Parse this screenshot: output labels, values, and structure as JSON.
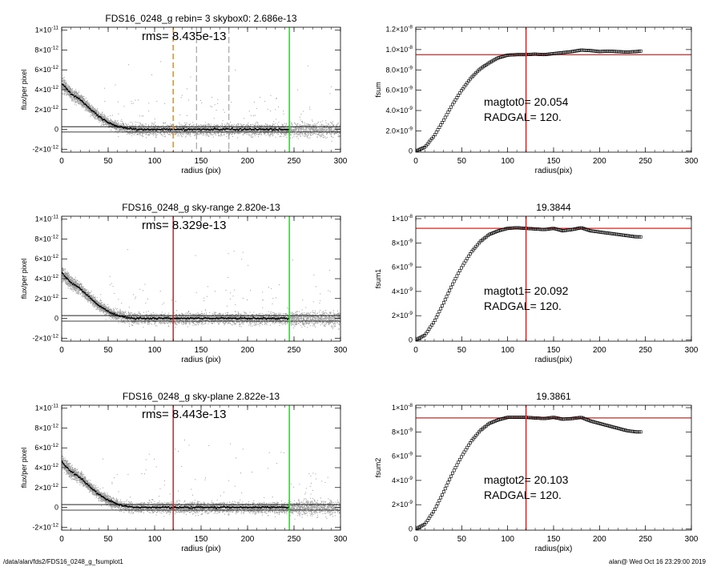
{
  "footer": {
    "left": "/data/alan/fds2/FDS16_0248_g_fsumplot1",
    "right": "alan@  Wed Oct 16 23:29:00 2019"
  },
  "colors": {
    "points": "#9a9a9a",
    "profile": "#000000",
    "green": "#22dd22",
    "red": "#dd2222",
    "orange": "#ee8822",
    "dash": "#777777"
  },
  "chart_data": [
    {
      "type": "scatter",
      "title": "FDS16_0248_g rebin= 3    skybox0:  2.686e-13",
      "annotation": "rms= 8.435e-13",
      "xlabel": "radius (pix)",
      "ylabel": "flux/per pixel",
      "xlim": [
        0,
        300
      ],
      "ylim": [
        -2.3e-12,
        1.03e-11
      ],
      "xticks": [
        0,
        50,
        100,
        150,
        200,
        250,
        300
      ],
      "yticks": [
        {
          "v": -2e-12,
          "m": "-2×10",
          "e": "-12"
        },
        {
          "v": 0,
          "m": "0",
          "e": ""
        },
        {
          "v": 2e-12,
          "m": "2×10",
          "e": "-12"
        },
        {
          "v": 4e-12,
          "m": "4×10",
          "e": "-12"
        },
        {
          "v": 6e-12,
          "m": "6×10",
          "e": "-12"
        },
        {
          "v": 8e-12,
          "m": "8×10",
          "e": "-12"
        },
        {
          "v": 1e-11,
          "m": "1×10",
          "e": "-11"
        }
      ],
      "hlines": [
        2.7e-13,
        -2.7e-13
      ],
      "vlines": [
        {
          "x": 245,
          "color": "green",
          "style": "solid"
        },
        {
          "x": 120,
          "color": "orange",
          "style": "dashed"
        },
        {
          "x": 145,
          "color": "dash",
          "style": "dashed"
        },
        {
          "x": 180,
          "color": "dash",
          "style": "dashed"
        }
      ],
      "profile": {
        "x": [
          0,
          10,
          20,
          30,
          40,
          50,
          60,
          70,
          80,
          100,
          150,
          200,
          245
        ],
        "y": [
          4.6e-12,
          3.6e-12,
          3e-12,
          2.1e-12,
          1.3e-12,
          7e-13,
          3e-13,
          1e-13,
          0,
          0,
          0,
          0,
          0
        ]
      },
      "pixel_scatter": {
        "x_range": [
          0,
          300
        ],
        "core_x": [
          0,
          60
        ],
        "noise_sigma": 4.3e-13,
        "outlier_ymax": 7e-12
      }
    },
    {
      "type": "line",
      "title": "",
      "annotations": [
        "magtot0=  20.054",
        "RADGAL=    120."
      ],
      "xlabel": "radius(pix)",
      "ylabel": "fsum",
      "xlim": [
        0,
        300
      ],
      "ylim": [
        -1e-10,
        1.22e-08
      ],
      "xticks": [
        0,
        50,
        100,
        150,
        200,
        250,
        300
      ],
      "yticks": [
        {
          "v": 0,
          "m": "0",
          "e": ""
        },
        {
          "v": 2e-09,
          "m": "2.0×10",
          "e": "-9"
        },
        {
          "v": 4e-09,
          "m": "4.0×10",
          "e": "-9"
        },
        {
          "v": 6e-09,
          "m": "6.0×10",
          "e": "-9"
        },
        {
          "v": 8e-09,
          "m": "8.0×10",
          "e": "-9"
        },
        {
          "v": 1e-08,
          "m": "1.0×10",
          "e": "-8"
        },
        {
          "v": 1.2e-08,
          "m": "1.2×10",
          "e": "-8"
        }
      ],
      "hlines": [
        9.5e-09
      ],
      "vlines": [
        {
          "x": 120,
          "color": "red",
          "style": "solid"
        }
      ],
      "series": [
        {
          "x": [
            0,
            10,
            20,
            30,
            40,
            50,
            60,
            70,
            80,
            90,
            100,
            110,
            120,
            130,
            140,
            150,
            160,
            170,
            180,
            190,
            200,
            210,
            220,
            230,
            240,
            245
          ],
          "y": [
            0,
            4e-10,
            1.5e-09,
            3e-09,
            4.6e-09,
            6e-09,
            7.2e-09,
            8.1e-09,
            8.7e-09,
            9.2e-09,
            9.45e-09,
            9.5e-09,
            9.5e-09,
            9.55e-09,
            9.5e-09,
            9.6e-09,
            9.7e-09,
            9.8e-09,
            9.95e-09,
            9.9e-09,
            9.8e-09,
            9.85e-09,
            9.8e-09,
            9.75e-09,
            9.8e-09,
            9.85e-09
          ]
        }
      ]
    },
    {
      "type": "scatter",
      "title": "FDS16_0248_g sky-range  2.820e-13",
      "annotation": "rms= 8.329e-13",
      "xlabel": "radius (pix)",
      "ylabel": "flux/per pixel",
      "xlim": [
        0,
        300
      ],
      "ylim": [
        -2.3e-12,
        1.03e-11
      ],
      "xticks": [
        0,
        50,
        100,
        150,
        200,
        250,
        300
      ],
      "yticks": [
        {
          "v": -2e-12,
          "m": "-2×10",
          "e": "-12"
        },
        {
          "v": 0,
          "m": "0",
          "e": ""
        },
        {
          "v": 2e-12,
          "m": "2×10",
          "e": "-12"
        },
        {
          "v": 4e-12,
          "m": "4×10",
          "e": "-12"
        },
        {
          "v": 6e-12,
          "m": "6×10",
          "e": "-12"
        },
        {
          "v": 8e-12,
          "m": "8×10",
          "e": "-12"
        },
        {
          "v": 1e-11,
          "m": "1×10",
          "e": "-11"
        }
      ],
      "hlines": [
        2.8e-13,
        -2.8e-13
      ],
      "vlines": [
        {
          "x": 245,
          "color": "green",
          "style": "solid"
        },
        {
          "x": 120,
          "color": "red",
          "style": "solid"
        }
      ],
      "profile": {
        "x": [
          0,
          10,
          20,
          30,
          40,
          50,
          60,
          70,
          80,
          100,
          150,
          200,
          245
        ],
        "y": [
          4.6e-12,
          3.6e-12,
          3e-12,
          2.1e-12,
          1.3e-12,
          7e-13,
          3e-13,
          1e-13,
          0,
          0,
          0,
          0,
          0
        ]
      },
      "pixel_scatter": {
        "x_range": [
          0,
          300
        ],
        "core_x": [
          0,
          60
        ],
        "noise_sigma": 4.3e-13,
        "outlier_ymax": 7e-12
      }
    },
    {
      "type": "line",
      "title": "19.3844",
      "annotations": [
        "magtot1=  20.092",
        "RADGAL=    120."
      ],
      "xlabel": "radius(pix)",
      "ylabel": "fsum1",
      "xlim": [
        0,
        300
      ],
      "ylim": [
        -1e-10,
        1.02e-08
      ],
      "xticks": [
        0,
        50,
        100,
        150,
        200,
        250,
        300
      ],
      "yticks": [
        {
          "v": 0,
          "m": "0",
          "e": ""
        },
        {
          "v": 2e-09,
          "m": "2×10",
          "e": "-9"
        },
        {
          "v": 4e-09,
          "m": "4×10",
          "e": "-9"
        },
        {
          "v": 6e-09,
          "m": "6×10",
          "e": "-9"
        },
        {
          "v": 8e-09,
          "m": "8×10",
          "e": "-9"
        },
        {
          "v": 1e-08,
          "m": "1×10",
          "e": "-8"
        }
      ],
      "hlines": [
        9.2e-09
      ],
      "vlines": [
        {
          "x": 120,
          "color": "red",
          "style": "solid"
        }
      ],
      "series": [
        {
          "x": [
            0,
            10,
            20,
            30,
            40,
            50,
            60,
            70,
            80,
            90,
            100,
            110,
            120,
            130,
            140,
            150,
            160,
            170,
            180,
            190,
            200,
            210,
            220,
            230,
            240,
            245
          ],
          "y": [
            0,
            4e-10,
            1.5e-09,
            3e-09,
            4.6e-09,
            6e-09,
            7.2e-09,
            8.1e-09,
            8.7e-09,
            9e-09,
            9.2e-09,
            9.25e-09,
            9.2e-09,
            9.15e-09,
            9.1e-09,
            9.2e-09,
            9e-09,
            9.1e-09,
            9.25e-09,
            9e-09,
            8.9e-09,
            8.8e-09,
            8.7e-09,
            8.6e-09,
            8.5e-09,
            8.5e-09
          ]
        }
      ]
    },
    {
      "type": "scatter",
      "title": "FDS16_0248_g sky-plane  2.822e-13",
      "annotation": "rms= 8.443e-13",
      "xlabel": "radius (pix)",
      "ylabel": "flux/per pixel",
      "xlim": [
        0,
        300
      ],
      "ylim": [
        -2.3e-12,
        1.03e-11
      ],
      "xticks": [
        0,
        50,
        100,
        150,
        200,
        250,
        300
      ],
      "yticks": [
        {
          "v": -2e-12,
          "m": "-2×10",
          "e": "-12"
        },
        {
          "v": 0,
          "m": "0",
          "e": ""
        },
        {
          "v": 2e-12,
          "m": "2×10",
          "e": "-12"
        },
        {
          "v": 4e-12,
          "m": "4×10",
          "e": "-12"
        },
        {
          "v": 6e-12,
          "m": "6×10",
          "e": "-12"
        },
        {
          "v": 8e-12,
          "m": "8×10",
          "e": "-12"
        },
        {
          "v": 1e-11,
          "m": "1×10",
          "e": "-11"
        }
      ],
      "hlines": [
        2.8e-13,
        -2.8e-13
      ],
      "vlines": [
        {
          "x": 245,
          "color": "green",
          "style": "solid"
        },
        {
          "x": 120,
          "color": "red",
          "style": "solid"
        }
      ],
      "profile": {
        "x": [
          0,
          10,
          20,
          30,
          40,
          50,
          60,
          70,
          80,
          100,
          150,
          200,
          245
        ],
        "y": [
          4.6e-12,
          3.6e-12,
          3e-12,
          2.1e-12,
          1.3e-12,
          7e-13,
          3e-13,
          1e-13,
          0,
          0,
          0,
          0,
          0
        ]
      },
      "pixel_scatter": {
        "x_range": [
          0,
          300
        ],
        "core_x": [
          0,
          60
        ],
        "noise_sigma": 4.3e-13,
        "outlier_ymax": 7e-12
      }
    },
    {
      "type": "line",
      "title": "19.3861",
      "annotations": [
        "magtot2=  20.103",
        "RADGAL=    120."
      ],
      "xlabel": "radius(pix)",
      "ylabel": "fsum2",
      "xlim": [
        0,
        300
      ],
      "ylim": [
        -1e-10,
        1.02e-08
      ],
      "xticks": [
        0,
        50,
        100,
        150,
        200,
        250,
        300
      ],
      "yticks": [
        {
          "v": 0,
          "m": "0",
          "e": ""
        },
        {
          "v": 2e-09,
          "m": "2×10",
          "e": "-9"
        },
        {
          "v": 4e-09,
          "m": "4×10",
          "e": "-9"
        },
        {
          "v": 6e-09,
          "m": "6×10",
          "e": "-9"
        },
        {
          "v": 8e-09,
          "m": "8×10",
          "e": "-9"
        },
        {
          "v": 1e-08,
          "m": "1×10",
          "e": "-8"
        }
      ],
      "hlines": [
        9.15e-09
      ],
      "vlines": [
        {
          "x": 120,
          "color": "red",
          "style": "solid"
        }
      ],
      "series": [
        {
          "x": [
            0,
            10,
            20,
            30,
            40,
            50,
            60,
            70,
            80,
            90,
            100,
            110,
            120,
            130,
            140,
            150,
            160,
            170,
            180,
            190,
            200,
            210,
            220,
            230,
            240,
            245
          ],
          "y": [
            0,
            4e-10,
            1.5e-09,
            3e-09,
            4.6e-09,
            6e-09,
            7.2e-09,
            8.1e-09,
            8.7e-09,
            9e-09,
            9.2e-09,
            9.2e-09,
            9.2e-09,
            9.15e-09,
            9.1e-09,
            9.2e-09,
            9.05e-09,
            9.1e-09,
            9.2e-09,
            8.9e-09,
            8.7e-09,
            8.5e-09,
            8.3e-09,
            8.1e-09,
            8e-09,
            8e-09
          ]
        }
      ]
    }
  ]
}
